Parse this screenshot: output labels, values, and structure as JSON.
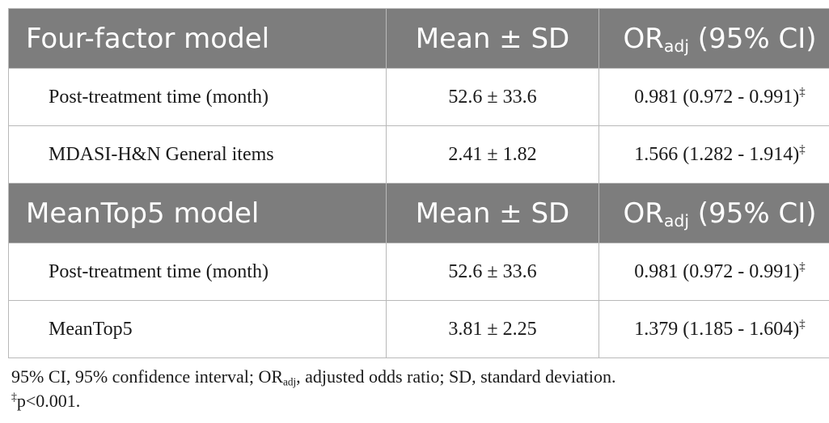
{
  "headers": [
    {
      "model": "Four-factor model",
      "mean_sd": "Mean ± SD",
      "or_base": "OR",
      "or_sub": "adj",
      "or_rest": " (95% CI)"
    },
    {
      "model": "MeanTop5 model",
      "mean_sd": "Mean ± SD",
      "or_base": "OR",
      "or_sub": "adj",
      "or_rest": " (95% CI)"
    }
  ],
  "groups": [
    [
      {
        "variable": "Post-treatment time (month)",
        "mean_sd": "52.6 ± 33.6",
        "or_ci": "0.981 (0.972 - 0.991)",
        "mark": "‡"
      },
      {
        "variable": "MDASI-H&N General items",
        "mean_sd": "2.41 ± 1.82",
        "or_ci": "1.566 (1.282 - 1.914)",
        "mark": "‡"
      }
    ],
    [
      {
        "variable": "Post-treatment time (month)",
        "mean_sd": "52.6 ± 33.6",
        "or_ci": "0.981 (0.972 - 0.991)",
        "mark": "‡"
      },
      {
        "variable": "MeanTop5",
        "mean_sd": "3.81 ± 2.25",
        "or_ci": "1.379 (1.185 - 1.604)",
        "mark": "‡"
      }
    ]
  ],
  "footnote": {
    "line1_a": "95% CI, 95% confidence interval; OR",
    "line1_sub": "adj",
    "line1_b": ", adjusted odds ratio; SD, standard deviation.",
    "line2_mark": "‡",
    "line2_text": "p<0.001."
  }
}
